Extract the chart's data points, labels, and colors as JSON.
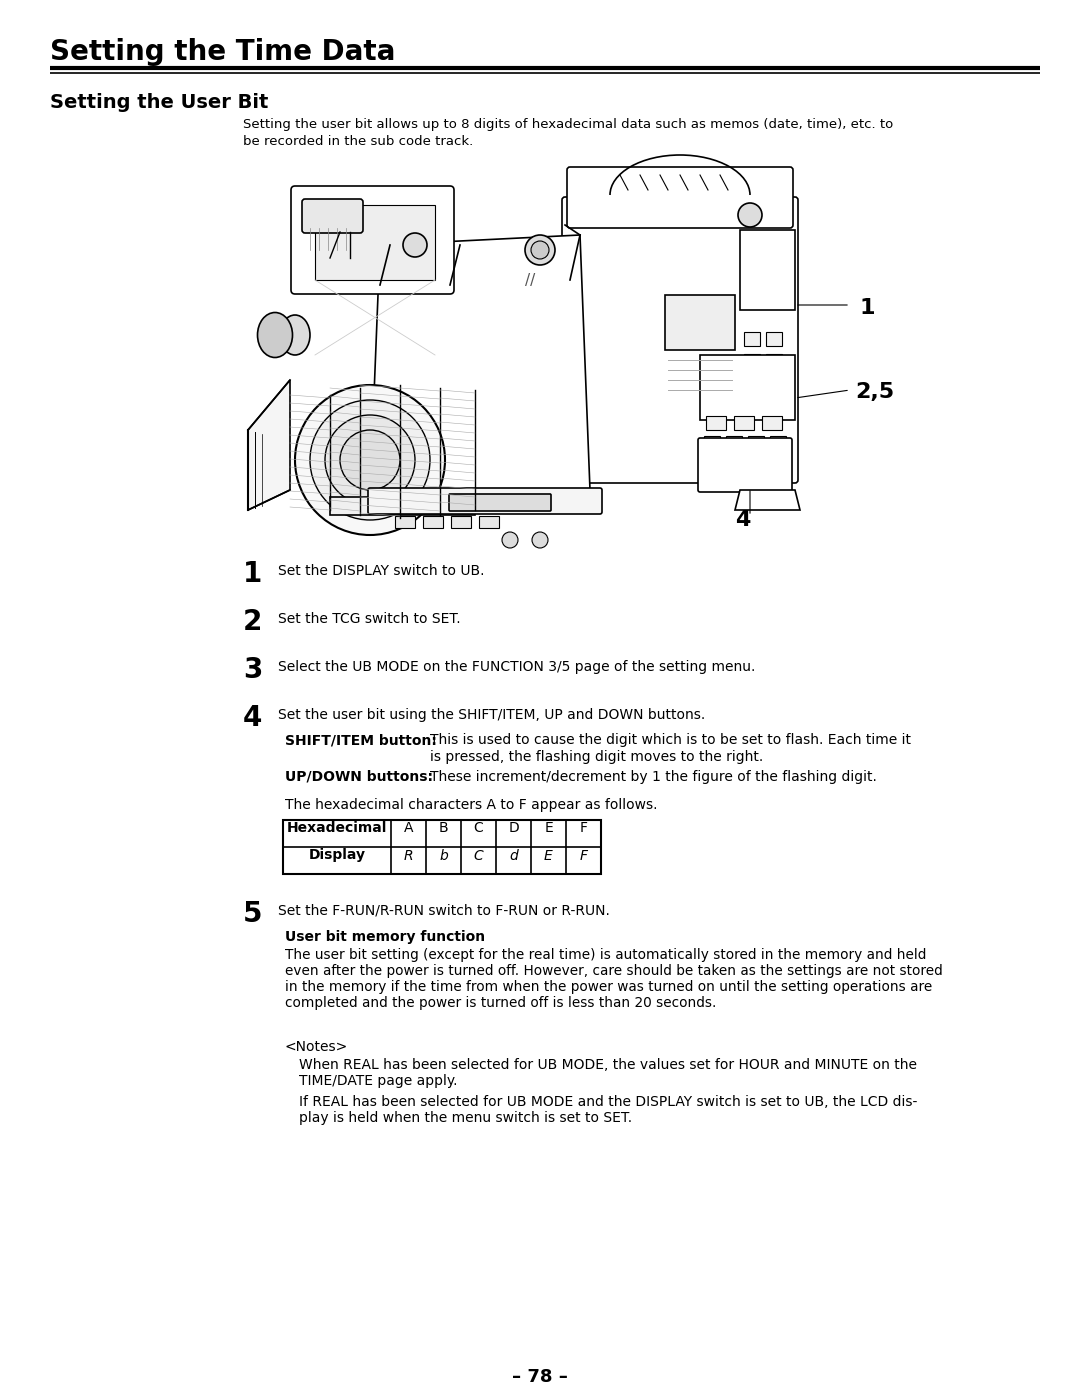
{
  "title": "Setting the Time Data",
  "section_title": "Setting the User Bit",
  "intro_text_line1": "Setting the user bit allows up to 8 digits of hexadecimal data such as memos (date, time), etc. to",
  "intro_text_line2": "be recorded in the sub code track.",
  "step1_text": "Set the DISPLAY switch to UB.",
  "step2_text": "Set the TCG switch to SET.",
  "step3_text": "Select the UB MODE on the FUNCTION 3/5 page of the setting menu.",
  "step4_text": "Set the user bit using the SHIFT/ITEM, UP and DOWN buttons.",
  "step4_label1": "SHIFT/ITEM button:",
  "step4_desc1a": "This is used to cause the digit which is to be set to flash. Each time it",
  "step4_desc1b": "is pressed, the flashing digit moves to the right.",
  "step4_label2": "UP/DOWN buttons:",
  "step4_desc2": "These increment/decrement by 1 the figure of the flashing digit.",
  "table_intro": "The hexadecimal characters A to F appear as follows.",
  "table_col1_header": "Hexadecimal",
  "table_hex_vals": [
    "A",
    "B",
    "C",
    "D",
    "E",
    "F"
  ],
  "table_col1_row2": "Display",
  "table_display_vals": [
    "R",
    "b",
    "C",
    "d",
    "E",
    "F"
  ],
  "step5_text": "Set the F-RUN/R-RUN switch to F-RUN or R-RUN.",
  "note_func_title": "User bit memory function",
  "note_func_body": "The user bit setting (except for the real time) is automatically stored in the memory and held\neven after the power is turned off. However, care should be taken as the settings are not stored\nin the memory if the time from when the power was turned on until the setting operations are\ncompleted and the power is turned off is less than 20 seconds.",
  "notes_title": "<Notes>",
  "note1_line1": "When REAL has been selected for UB MODE, the values set for HOUR and MINUTE on the",
  "note1_line2": "TIME/DATE page apply.",
  "note2_line1": "If REAL has been selected for UB MODE and the DISPLAY switch is set to UB, the LCD dis-",
  "note2_line2": "play is held when the menu switch is set to SET.",
  "page_number": "– 78 –",
  "bg_color": "#ffffff",
  "text_color": "#000000",
  "figsize": [
    10.8,
    13.97
  ],
  "dpi": 100
}
